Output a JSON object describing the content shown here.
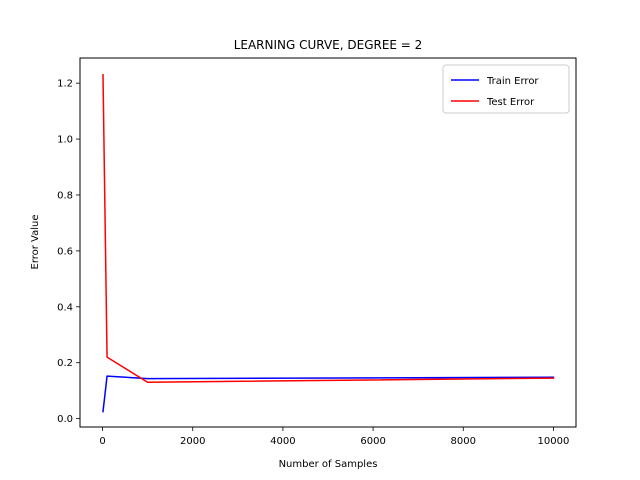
{
  "chart_data": {
    "type": "line",
    "title": "LEARNING CURVE, DEGREE = 2",
    "xlabel": "Number of Samples",
    "ylabel": "Error Value",
    "xlim": [
      -500,
      10500
    ],
    "ylim": [
      -0.03,
      1.29
    ],
    "xticks": [
      0,
      2000,
      4000,
      6000,
      8000,
      10000
    ],
    "xtick_labels": [
      "0",
      "2000",
      "4000",
      "6000",
      "8000",
      "10000"
    ],
    "yticks": [
      0.0,
      0.2,
      0.4,
      0.6,
      0.8,
      1.0,
      1.2
    ],
    "ytick_labels": [
      "0.0",
      "0.2",
      "0.4",
      "0.6",
      "0.8",
      "1.0",
      "1.2"
    ],
    "grid": false,
    "legend_position": "top-right",
    "series": [
      {
        "name": "Train Error",
        "color": "#0000ff",
        "x": [
          10,
          100,
          1000,
          10000
        ],
        "y": [
          0.025,
          0.152,
          0.143,
          0.148
        ]
      },
      {
        "name": "Test Error",
        "color": "#ff0000",
        "x": [
          10,
          100,
          1000,
          10000
        ],
        "y": [
          1.23,
          0.22,
          0.13,
          0.145
        ]
      }
    ]
  }
}
